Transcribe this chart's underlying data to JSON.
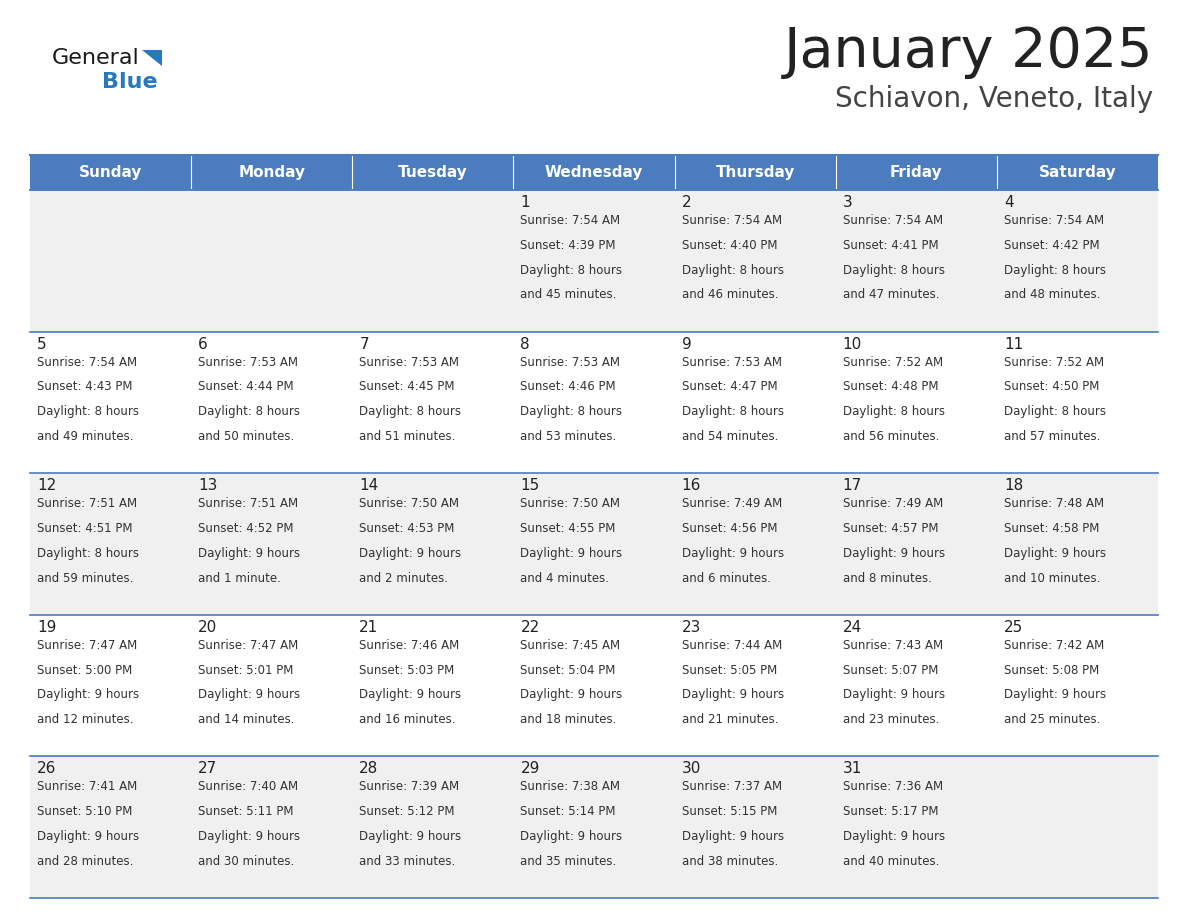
{
  "title": "January 2025",
  "subtitle": "Schiavon, Veneto, Italy",
  "header_color": "#4a7cbf",
  "header_text_color": "#ffffff",
  "cell_bg_light": "#f0f0f0",
  "cell_bg_white": "#ffffff",
  "title_color": "#222222",
  "subtitle_color": "#444444",
  "line_color": "#4a7cbf",
  "text_color": "#333333",
  "day_names": [
    "Sunday",
    "Monday",
    "Tuesday",
    "Wednesday",
    "Thursday",
    "Friday",
    "Saturday"
  ],
  "weeks": [
    [
      {
        "day": "",
        "info": ""
      },
      {
        "day": "",
        "info": ""
      },
      {
        "day": "",
        "info": ""
      },
      {
        "day": "1",
        "info": "Sunrise: 7:54 AM\nSunset: 4:39 PM\nDaylight: 8 hours\nand 45 minutes."
      },
      {
        "day": "2",
        "info": "Sunrise: 7:54 AM\nSunset: 4:40 PM\nDaylight: 8 hours\nand 46 minutes."
      },
      {
        "day": "3",
        "info": "Sunrise: 7:54 AM\nSunset: 4:41 PM\nDaylight: 8 hours\nand 47 minutes."
      },
      {
        "day": "4",
        "info": "Sunrise: 7:54 AM\nSunset: 4:42 PM\nDaylight: 8 hours\nand 48 minutes."
      }
    ],
    [
      {
        "day": "5",
        "info": "Sunrise: 7:54 AM\nSunset: 4:43 PM\nDaylight: 8 hours\nand 49 minutes."
      },
      {
        "day": "6",
        "info": "Sunrise: 7:53 AM\nSunset: 4:44 PM\nDaylight: 8 hours\nand 50 minutes."
      },
      {
        "day": "7",
        "info": "Sunrise: 7:53 AM\nSunset: 4:45 PM\nDaylight: 8 hours\nand 51 minutes."
      },
      {
        "day": "8",
        "info": "Sunrise: 7:53 AM\nSunset: 4:46 PM\nDaylight: 8 hours\nand 53 minutes."
      },
      {
        "day": "9",
        "info": "Sunrise: 7:53 AM\nSunset: 4:47 PM\nDaylight: 8 hours\nand 54 minutes."
      },
      {
        "day": "10",
        "info": "Sunrise: 7:52 AM\nSunset: 4:48 PM\nDaylight: 8 hours\nand 56 minutes."
      },
      {
        "day": "11",
        "info": "Sunrise: 7:52 AM\nSunset: 4:50 PM\nDaylight: 8 hours\nand 57 minutes."
      }
    ],
    [
      {
        "day": "12",
        "info": "Sunrise: 7:51 AM\nSunset: 4:51 PM\nDaylight: 8 hours\nand 59 minutes."
      },
      {
        "day": "13",
        "info": "Sunrise: 7:51 AM\nSunset: 4:52 PM\nDaylight: 9 hours\nand 1 minute."
      },
      {
        "day": "14",
        "info": "Sunrise: 7:50 AM\nSunset: 4:53 PM\nDaylight: 9 hours\nand 2 minutes."
      },
      {
        "day": "15",
        "info": "Sunrise: 7:50 AM\nSunset: 4:55 PM\nDaylight: 9 hours\nand 4 minutes."
      },
      {
        "day": "16",
        "info": "Sunrise: 7:49 AM\nSunset: 4:56 PM\nDaylight: 9 hours\nand 6 minutes."
      },
      {
        "day": "17",
        "info": "Sunrise: 7:49 AM\nSunset: 4:57 PM\nDaylight: 9 hours\nand 8 minutes."
      },
      {
        "day": "18",
        "info": "Sunrise: 7:48 AM\nSunset: 4:58 PM\nDaylight: 9 hours\nand 10 minutes."
      }
    ],
    [
      {
        "day": "19",
        "info": "Sunrise: 7:47 AM\nSunset: 5:00 PM\nDaylight: 9 hours\nand 12 minutes."
      },
      {
        "day": "20",
        "info": "Sunrise: 7:47 AM\nSunset: 5:01 PM\nDaylight: 9 hours\nand 14 minutes."
      },
      {
        "day": "21",
        "info": "Sunrise: 7:46 AM\nSunset: 5:03 PM\nDaylight: 9 hours\nand 16 minutes."
      },
      {
        "day": "22",
        "info": "Sunrise: 7:45 AM\nSunset: 5:04 PM\nDaylight: 9 hours\nand 18 minutes."
      },
      {
        "day": "23",
        "info": "Sunrise: 7:44 AM\nSunset: 5:05 PM\nDaylight: 9 hours\nand 21 minutes."
      },
      {
        "day": "24",
        "info": "Sunrise: 7:43 AM\nSunset: 5:07 PM\nDaylight: 9 hours\nand 23 minutes."
      },
      {
        "day": "25",
        "info": "Sunrise: 7:42 AM\nSunset: 5:08 PM\nDaylight: 9 hours\nand 25 minutes."
      }
    ],
    [
      {
        "day": "26",
        "info": "Sunrise: 7:41 AM\nSunset: 5:10 PM\nDaylight: 9 hours\nand 28 minutes."
      },
      {
        "day": "27",
        "info": "Sunrise: 7:40 AM\nSunset: 5:11 PM\nDaylight: 9 hours\nand 30 minutes."
      },
      {
        "day": "28",
        "info": "Sunrise: 7:39 AM\nSunset: 5:12 PM\nDaylight: 9 hours\nand 33 minutes."
      },
      {
        "day": "29",
        "info": "Sunrise: 7:38 AM\nSunset: 5:14 PM\nDaylight: 9 hours\nand 35 minutes."
      },
      {
        "day": "30",
        "info": "Sunrise: 7:37 AM\nSunset: 5:15 PM\nDaylight: 9 hours\nand 38 minutes."
      },
      {
        "day": "31",
        "info": "Sunrise: 7:36 AM\nSunset: 5:17 PM\nDaylight: 9 hours\nand 40 minutes."
      },
      {
        "day": "",
        "info": ""
      }
    ]
  ]
}
